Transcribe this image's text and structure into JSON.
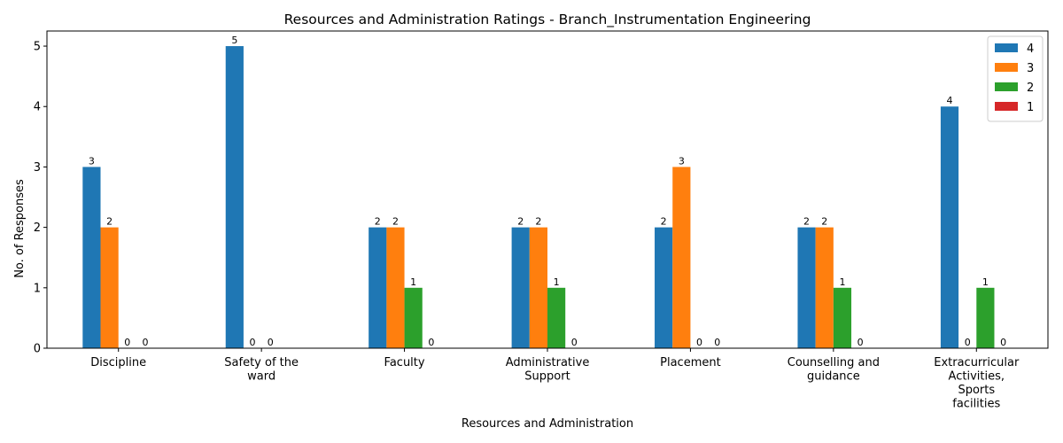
{
  "chart_data": {
    "type": "bar",
    "title": "Resources and Administration Ratings - Branch_Instrumentation Engineering",
    "xlabel": "Resources and Administration",
    "ylabel": "No. of Responses",
    "categories": [
      [
        "Discipline"
      ],
      [
        "Safety of the",
        "ward"
      ],
      [
        "Faculty"
      ],
      [
        "Administrative",
        "Support"
      ],
      [
        "Placement"
      ],
      [
        "Counselling and",
        "guidance"
      ],
      [
        "Extracurricular",
        "Activities,",
        "Sports",
        "facilities"
      ]
    ],
    "series": [
      {
        "name": "4",
        "color": "#1f77b4",
        "values": [
          3,
          5,
          2,
          2,
          2,
          2,
          4
        ]
      },
      {
        "name": "3",
        "color": "#ff7f0e",
        "values": [
          2,
          0,
          2,
          2,
          3,
          2,
          0
        ]
      },
      {
        "name": "2",
        "color": "#2ca02c",
        "values": [
          0,
          0,
          1,
          1,
          0,
          1,
          1
        ]
      },
      {
        "name": "1",
        "color": "#d62728",
        "values": [
          0,
          null,
          0,
          0,
          0,
          0,
          0
        ]
      }
    ],
    "ylim": [
      0,
      5.25
    ],
    "yticks": [
      "0",
      "1",
      "2",
      "3",
      "4",
      "5"
    ],
    "grid": false,
    "legend_position": "top-right"
  }
}
